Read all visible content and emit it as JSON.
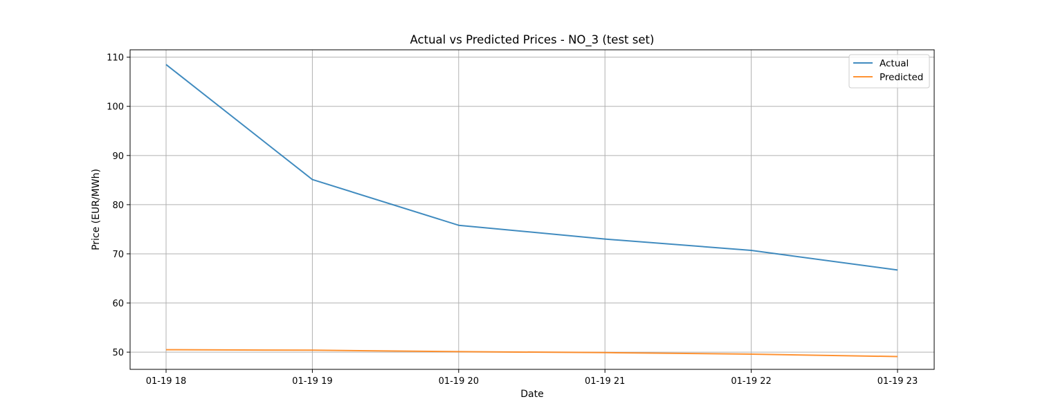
{
  "chart_data": {
    "type": "line",
    "title": "Actual vs Predicted Prices - NO_3 (test set)",
    "xlabel": "Date",
    "ylabel": "Price (EUR/MWh)",
    "x": [
      "01-19 18",
      "01-19 19",
      "01-19 20",
      "01-19 21",
      "01-19 22",
      "01-19 23"
    ],
    "ylim": [
      46.5,
      111.5
    ],
    "yticks": [
      50,
      60,
      70,
      80,
      90,
      100,
      110
    ],
    "grid": true,
    "legend_position": "top-right",
    "series": [
      {
        "name": "Actual",
        "color": "#1f77b4",
        "values": [
          108.5,
          85.1,
          75.8,
          73.0,
          70.7,
          66.7
        ]
      },
      {
        "name": "Predicted",
        "color": "#ff7f0e",
        "values": [
          50.5,
          50.4,
          50.1,
          49.9,
          49.6,
          49.1
        ]
      }
    ]
  }
}
